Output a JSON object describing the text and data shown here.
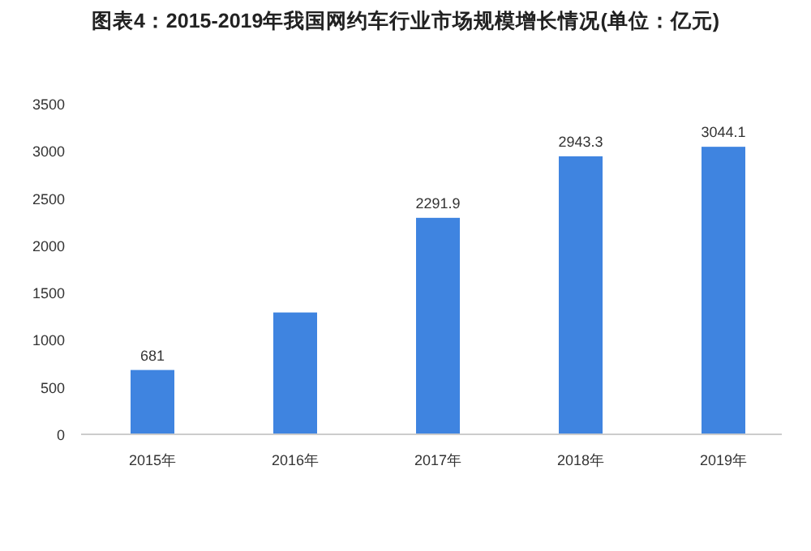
{
  "chart_data": {
    "type": "bar",
    "title": "图表4：2015-2019年我国网约车行业市场规模增长情况(单位：亿元)",
    "categories": [
      "2015年",
      "2016年",
      "2017年",
      "2018年",
      "2019年"
    ],
    "values": [
      681,
      1290,
      2291.9,
      2943.3,
      3044.1
    ],
    "value_labels": [
      "681",
      null,
      "2291.9",
      "2943.3",
      "3044.1"
    ],
    "color": "#3f84e0",
    "ylim": [
      0,
      3500
    ],
    "yticks": [
      0,
      500,
      1000,
      1500,
      2000,
      2500,
      3000,
      3500
    ],
    "grid": false
  }
}
